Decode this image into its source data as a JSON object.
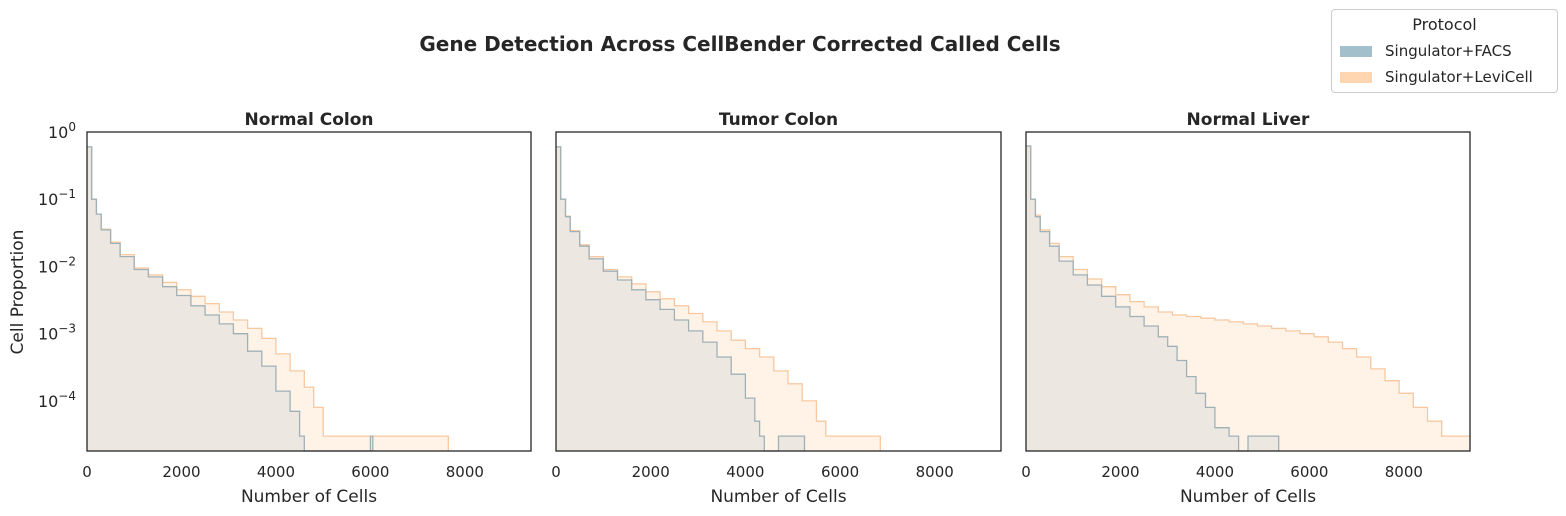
{
  "title": "Gene Detection Across CellBender Corrected Called Cells",
  "legend": {
    "title": "Protocol",
    "entries": [
      {
        "label": "Singulator+FACS",
        "color": "#a3bfcc"
      },
      {
        "label": "Singulator+LeviCell",
        "color": "#ffd6b0"
      }
    ]
  },
  "colors": {
    "facs_fill": "#a3bfcc",
    "levi_fill": "#ffd6b0",
    "overlap_fill": "#ede7e1",
    "facs_line": "#9fb1b7",
    "levi_line": "#f7c8a0"
  },
  "chart_data": [
    {
      "type": "histogram",
      "title": "Normal Colon",
      "xlabel": "Number of Cells",
      "ylabel": "Cell Proportion",
      "xlim": [
        0,
        9400
      ],
      "ylim": [
        1.8e-05,
        1
      ],
      "yscale": "log",
      "xticks": [
        0,
        2000,
        4000,
        6000,
        8000
      ],
      "yticks": [
        "10^0",
        "10^-1",
        "10^-2",
        "10^-3",
        "10^-4"
      ],
      "series": [
        {
          "name": "Singulator+FACS",
          "x": [
            0,
            100,
            200,
            300,
            500,
            700,
            1000,
            1300,
            1600,
            1900,
            2200,
            2500,
            2800,
            3100,
            3400,
            3700,
            4000,
            4300,
            4500,
            4600,
            5000,
            6000,
            6050
          ],
          "y": [
            0.6,
            0.1,
            0.06,
            0.035,
            0.022,
            0.014,
            0.009,
            0.007,
            0.005,
            0.0037,
            0.0026,
            0.0019,
            0.0014,
            0.001,
            0.00055,
            0.00033,
            0.00014,
            7e-05,
            3e-05,
            0,
            0,
            3e-05,
            0
          ]
        },
        {
          "name": "Singulator+LeviCell",
          "x": [
            0,
            100,
            200,
            300,
            500,
            700,
            1000,
            1300,
            1600,
            1900,
            2200,
            2500,
            2800,
            3100,
            3400,
            3700,
            4000,
            4300,
            4600,
            4800,
            5000,
            5500,
            6000,
            7600,
            7650
          ],
          "y": [
            0.6,
            0.1,
            0.06,
            0.036,
            0.023,
            0.015,
            0.0095,
            0.0075,
            0.0058,
            0.0045,
            0.0036,
            0.0028,
            0.0021,
            0.0016,
            0.0012,
            0.00085,
            0.0005,
            0.00028,
            0.00016,
            8e-05,
            3e-05,
            3e-05,
            3e-05,
            3e-05,
            0
          ]
        }
      ]
    },
    {
      "type": "histogram",
      "title": "Tumor Colon",
      "xlabel": "Number of Cells",
      "xlim": [
        0,
        9400
      ],
      "ylim": [
        1.8e-05,
        1
      ],
      "yscale": "log",
      "xticks": [
        0,
        2000,
        4000,
        6000,
        8000
      ],
      "series": [
        {
          "name": "Singulator+FACS",
          "x": [
            0,
            100,
            200,
            300,
            500,
            700,
            1000,
            1300,
            1600,
            1900,
            2200,
            2500,
            2800,
            3100,
            3400,
            3700,
            4000,
            4200,
            4300,
            4400,
            4700,
            5200,
            5250
          ],
          "y": [
            0.6,
            0.1,
            0.055,
            0.033,
            0.02,
            0.013,
            0.0085,
            0.0063,
            0.0045,
            0.0032,
            0.0023,
            0.0016,
            0.0011,
            0.00075,
            0.00045,
            0.00025,
            0.00011,
            5e-05,
            3e-05,
            0,
            3e-05,
            3e-05,
            0
          ]
        },
        {
          "name": "Singulator+LeviCell",
          "x": [
            0,
            100,
            200,
            300,
            500,
            700,
            1000,
            1300,
            1600,
            1900,
            2200,
            2500,
            2800,
            3100,
            3400,
            3700,
            4000,
            4300,
            4600,
            4900,
            5200,
            5500,
            5700,
            6300,
            6800,
            6850
          ],
          "y": [
            0.6,
            0.1,
            0.056,
            0.034,
            0.021,
            0.014,
            0.009,
            0.007,
            0.0055,
            0.0042,
            0.0033,
            0.0026,
            0.002,
            0.0015,
            0.0011,
            0.0008,
            0.0006,
            0.00045,
            0.00028,
            0.00018,
            0.0001,
            5e-05,
            3e-05,
            3e-05,
            3e-05,
            0
          ]
        }
      ]
    },
    {
      "type": "histogram",
      "title": "Normal Liver",
      "xlabel": "Number of Cells",
      "xlim": [
        0,
        9400
      ],
      "ylim": [
        1.8e-05,
        1
      ],
      "yscale": "log",
      "xticks": [
        0,
        2000,
        4000,
        6000,
        8000
      ],
      "series": [
        {
          "name": "Singulator+FACS",
          "x": [
            0,
            100,
            200,
            300,
            500,
            700,
            1000,
            1300,
            1600,
            1900,
            2200,
            2500,
            2800,
            3000,
            3200,
            3400,
            3600,
            3800,
            4000,
            4300,
            4500,
            4700,
            5300,
            5350
          ],
          "y": [
            0.62,
            0.1,
            0.055,
            0.033,
            0.02,
            0.012,
            0.0075,
            0.0053,
            0.0036,
            0.0025,
            0.0018,
            0.0013,
            0.0009,
            0.00065,
            0.0004,
            0.00023,
            0.00013,
            8e-05,
            4e-05,
            3e-05,
            0,
            3e-05,
            3e-05,
            0
          ]
        },
        {
          "name": "Singulator+LeviCell",
          "x": [
            0,
            100,
            200,
            300,
            500,
            700,
            1000,
            1300,
            1600,
            1900,
            2200,
            2500,
            2800,
            3100,
            3400,
            3700,
            4000,
            4300,
            4600,
            4900,
            5200,
            5500,
            5800,
            6100,
            6400,
            6700,
            7000,
            7300,
            7600,
            7900,
            8200,
            8500,
            8800,
            9100,
            9400
          ],
          "y": [
            0.62,
            0.1,
            0.058,
            0.035,
            0.022,
            0.014,
            0.009,
            0.0065,
            0.005,
            0.0038,
            0.003,
            0.0025,
            0.0021,
            0.0019,
            0.0018,
            0.0017,
            0.0016,
            0.0015,
            0.0014,
            0.0013,
            0.0012,
            0.0011,
            0.001,
            0.0009,
            0.00075,
            0.0006,
            0.00045,
            0.0003,
            0.0002,
            0.00013,
            8e-05,
            5e-05,
            3e-05,
            3e-05,
            3e-05
          ]
        }
      ]
    }
  ]
}
